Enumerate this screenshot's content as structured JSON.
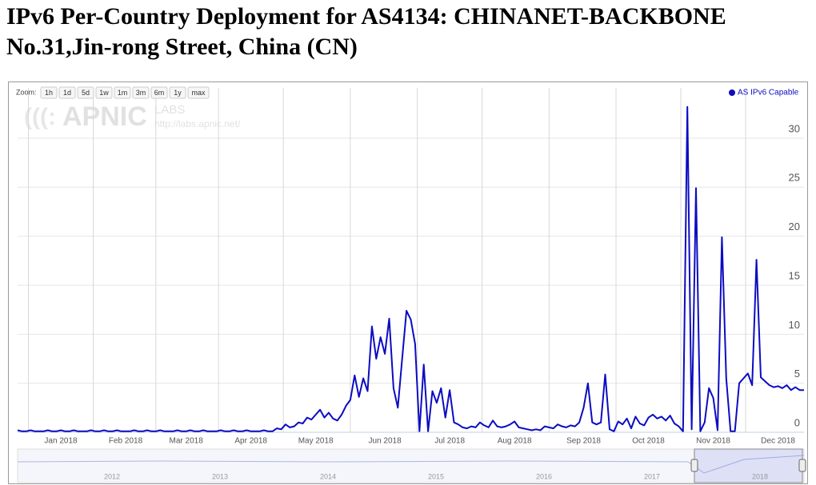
{
  "chart_data": {
    "type": "line",
    "title": [
      "IPv6 Per-Country Deployment for AS4134: CHINANET-BACKBONE",
      "No.31,Jin-rong Street, China (CN)"
    ],
    "zoom": {
      "label": "Zoom:",
      "buttons": [
        "1h",
        "1d",
        "5d",
        "1w",
        "1m",
        "3m",
        "6m",
        "1y",
        "max"
      ]
    },
    "watermark": {
      "logo": "APNIC",
      "labs": "LABS",
      "url": "http://labs.apnic.net/"
    },
    "legend_position": "top-right",
    "grid": true,
    "categories": [
      null,
      null,
      null,
      null,
      null,
      null,
      null,
      null,
      null,
      null,
      "Jan 2018",
      null,
      null,
      null,
      null,
      null,
      null,
      null,
      null,
      null,
      null,
      null,
      null,
      null,
      null,
      "Feb 2018",
      null,
      null,
      null,
      null,
      null,
      null,
      null,
      null,
      null,
      null,
      null,
      null,
      null,
      "Mar 2018",
      null,
      null,
      null,
      null,
      null,
      null,
      null,
      null,
      null,
      null,
      null,
      null,
      null,
      null,
      "Apr 2018",
      null,
      null,
      null,
      null,
      null,
      null,
      null,
      null,
      null,
      null,
      null,
      null,
      null,
      null,
      "May 2018",
      null,
      null,
      null,
      null,
      null,
      null,
      null,
      null,
      null,
      null,
      null,
      null,
      null,
      null,
      null,
      "Jun 2018",
      null,
      null,
      null,
      null,
      null,
      null,
      null,
      null,
      null,
      null,
      null,
      null,
      null,
      null,
      "Jul 2018",
      null,
      null,
      null,
      null,
      null,
      null,
      null,
      null,
      null,
      null,
      null,
      null,
      null,
      null,
      "Aug 2018",
      null,
      null,
      null,
      null,
      null,
      null,
      null,
      null,
      null,
      null,
      null,
      null,
      null,
      null,
      null,
      "Sep 2018",
      null,
      null,
      null,
      null,
      null,
      null,
      null,
      null,
      null,
      null,
      null,
      null,
      null,
      null,
      "Oct 2018",
      null,
      null,
      null,
      null,
      null,
      null,
      null,
      null,
      null,
      null,
      null,
      null,
      null,
      null,
      "Nov 2018",
      null,
      null,
      null,
      null,
      null,
      null,
      null,
      null,
      null,
      null,
      null,
      null,
      null,
      null,
      "Dec 2018",
      null,
      null,
      null,
      null,
      null,
      null
    ],
    "series": [
      {
        "name": "AS IPv6 Capable",
        "color": "#0c0cc2",
        "values": [
          0.2,
          0.1,
          0.1,
          0.2,
          0.1,
          0.1,
          0.1,
          0.2,
          0.1,
          0.1,
          0.2,
          0.1,
          0.1,
          0.2,
          0.1,
          0.1,
          0.1,
          0.2,
          0.1,
          0.1,
          0.2,
          0.1,
          0.1,
          0.2,
          0.1,
          0.1,
          0.1,
          0.2,
          0.1,
          0.1,
          0.2,
          0.1,
          0.1,
          0.2,
          0.1,
          0.1,
          0.1,
          0.2,
          0.1,
          0.1,
          0.2,
          0.1,
          0.1,
          0.2,
          0.1,
          0.1,
          0.1,
          0.2,
          0.1,
          0.1,
          0.2,
          0.1,
          0.1,
          0.2,
          0.1,
          0.1,
          0.1,
          0.2,
          0.1,
          0.1,
          0.4,
          0.3,
          0.8,
          0.5,
          0.6,
          1.0,
          0.9,
          1.5,
          1.3,
          1.8,
          2.3,
          1.5,
          2.0,
          1.4,
          1.2,
          1.8,
          2.7,
          3.3,
          5.8,
          3.6,
          5.5,
          4.2,
          10.8,
          7.5,
          9.7,
          8.0,
          11.6,
          4.5,
          2.5,
          7.5,
          12.4,
          11.5,
          9.0,
          0.1,
          6.9,
          0.1,
          4.2,
          3.0,
          4.5,
          1.5,
          4.3,
          1.0,
          0.8,
          0.5,
          0.4,
          0.6,
          0.5,
          1.0,
          0.7,
          0.5,
          1.2,
          0.6,
          0.5,
          0.6,
          0.8,
          1.1,
          0.5,
          0.4,
          0.3,
          0.2,
          0.3,
          0.2,
          0.6,
          0.5,
          0.4,
          0.8,
          0.6,
          0.5,
          0.7,
          0.6,
          1.0,
          2.5,
          5.0,
          1.0,
          0.8,
          1.0,
          5.9,
          0.3,
          0.1,
          1.1,
          0.8,
          1.4,
          0.4,
          1.6,
          0.9,
          0.7,
          1.5,
          1.8,
          1.4,
          1.6,
          1.2,
          1.7,
          0.9,
          0.6,
          0.1,
          33.2,
          0.3,
          24.9,
          0.1,
          1.0,
          4.5,
          3.5,
          0.2,
          19.9,
          5.5,
          0.1,
          0.1,
          5.0,
          5.5,
          6.0,
          4.8,
          17.6,
          5.6,
          5.2,
          4.8,
          4.6,
          4.7,
          4.5,
          4.8,
          4.3,
          4.6,
          4.3,
          4.3
        ]
      }
    ],
    "ylim": [
      0,
      33.5
    ],
    "yticks": [
      0,
      5,
      10,
      15,
      20,
      25,
      30
    ],
    "navigator": {
      "labels": [
        "2012",
        "2013",
        "2014",
        "2015",
        "2016",
        "2017",
        "2018"
      ]
    }
  }
}
